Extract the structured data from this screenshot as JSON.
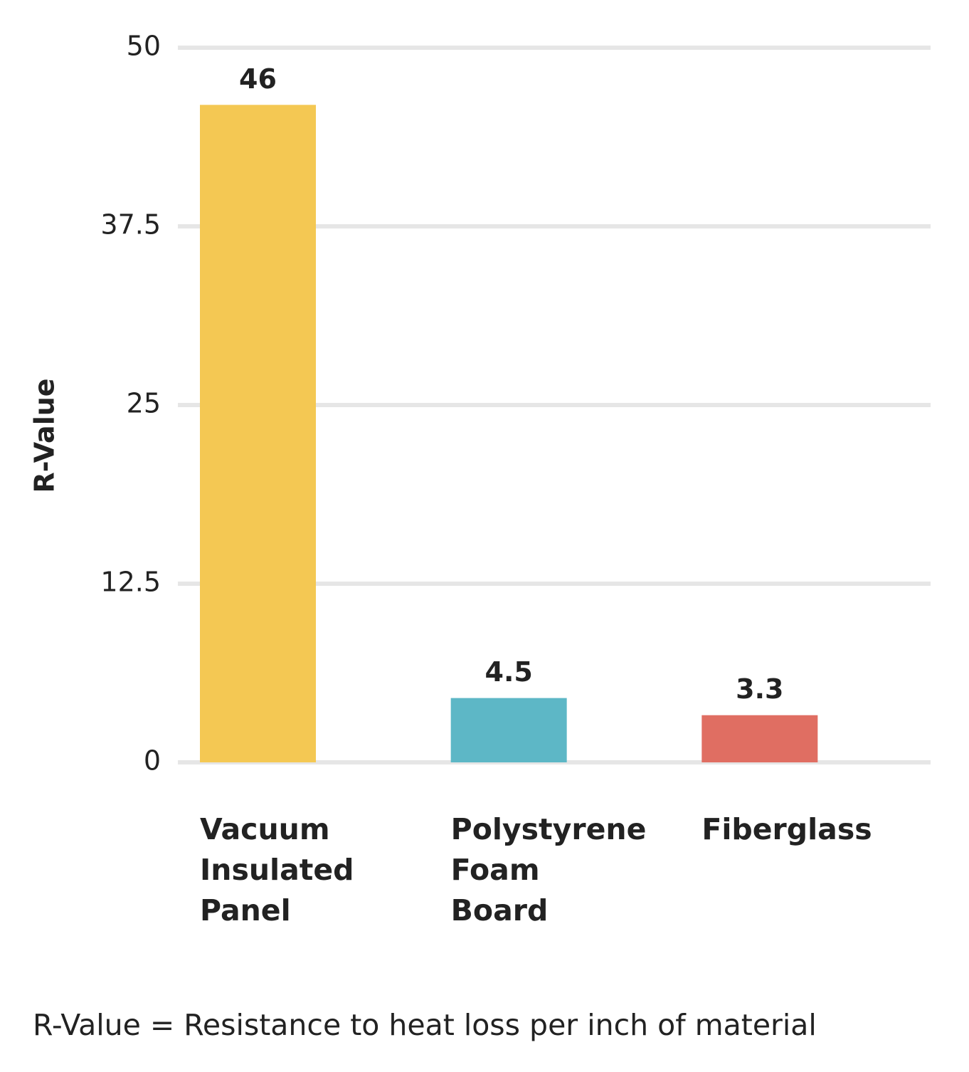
{
  "chart_data": {
    "type": "bar",
    "categories": [
      "Vacuum Insulated Panel",
      "Polystyrene Foam Board",
      "Fiberglass"
    ],
    "values": [
      46,
      4.5,
      3.3
    ],
    "colors": [
      "#f4c853",
      "#5db7c6",
      "#e06e62"
    ],
    "y_label": "R-Value",
    "ylim": [
      0,
      50
    ],
    "yticks": [
      0,
      12.5,
      25,
      37.5,
      50
    ],
    "grid": true,
    "footnote": "R-Value = Resistance to heat loss per inch of material"
  }
}
